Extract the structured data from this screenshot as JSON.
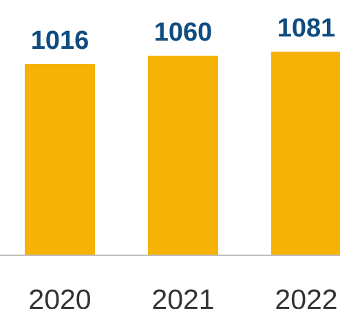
{
  "chart_data": {
    "type": "bar",
    "categories": [
      "2020",
      "2021",
      "2022"
    ],
    "values": [
      1016,
      1060,
      1081
    ],
    "title": "",
    "xlabel": "",
    "ylabel": "",
    "grid": false,
    "legend": "none",
    "colors": {
      "bar": "#F6B206",
      "value_label": "#0F4C81",
      "tick_label": "#333333",
      "axis": "#BFBFBF"
    }
  }
}
